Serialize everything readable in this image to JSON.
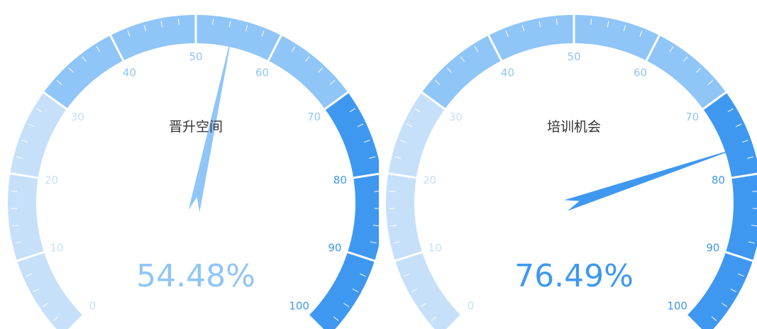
{
  "chart_data": [
    {
      "type": "gauge",
      "title": "晋升空间",
      "value": 54.48,
      "value_label": "54.48%",
      "min": 0,
      "max": 100,
      "tick_labels": [
        "0",
        "10",
        "20",
        "30",
        "40",
        "50",
        "60",
        "70",
        "80",
        "90",
        "100"
      ],
      "value_color": "#90c5f7"
    },
    {
      "type": "gauge",
      "title": "培训机会",
      "value": 76.49,
      "value_label": "76.49%",
      "min": 0,
      "max": 100,
      "tick_labels": [
        "0",
        "10",
        "20",
        "30",
        "40",
        "50",
        "60",
        "70",
        "80",
        "90",
        "100"
      ],
      "value_color": "#3f98f0"
    }
  ],
  "bands": [
    {
      "range": [
        0,
        30
      ],
      "color": "#c6e0fa"
    },
    {
      "range": [
        30,
        70
      ],
      "color": "#90c5f7"
    },
    {
      "range": [
        70,
        100
      ],
      "color": "#3f98f0"
    }
  ]
}
